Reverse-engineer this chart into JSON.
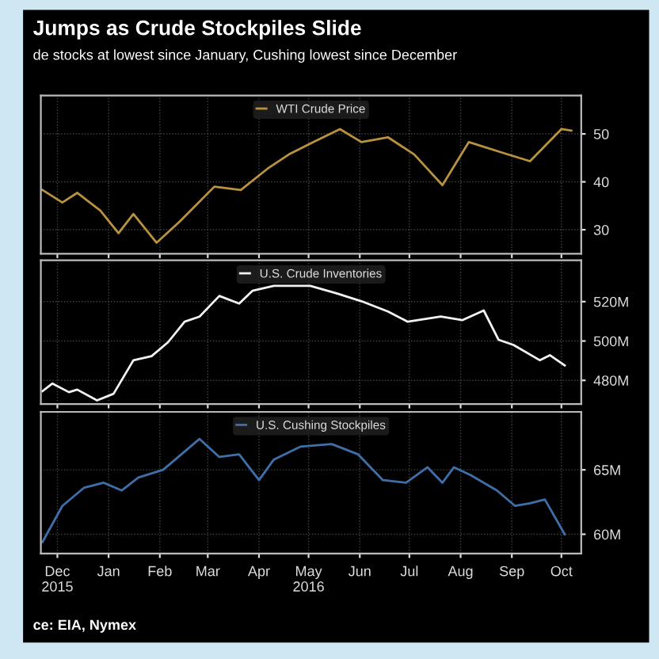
{
  "chart_data": [
    {
      "type": "line",
      "title": "Jumps as Crude Stockpiles Slide",
      "subtitle": "de stocks at lowest since January, Cushing lowest since December",
      "legend": "top",
      "grid": true,
      "tick_labels": "y",
      "xlim": [
        "2015-12-05",
        "2016-10-27"
      ],
      "ylim": [
        25,
        58
      ],
      "yticks": [
        30,
        40,
        50
      ],
      "series": [
        {
          "name": "WTI Crude Price",
          "color": "#b8923f",
          "x": [
            "2015-12-06",
            "2015-12-18",
            "2015-12-27",
            "2016-01-10",
            "2016-01-21",
            "2016-01-30",
            "2016-02-13",
            "2016-02-27",
            "2016-03-19",
            "2016-04-04",
            "2016-04-20",
            "2016-05-03",
            "2016-05-18",
            "2016-06-03",
            "2016-06-16",
            "2016-07-02",
            "2016-07-18",
            "2016-08-04",
            "2016-08-20",
            "2016-09-10",
            "2016-09-26",
            "2016-10-15",
            "2016-10-21"
          ],
          "values": [
            38.3,
            35.7,
            37.7,
            34,
            29.3,
            33.3,
            27.3,
            31.7,
            39,
            38.3,
            42.7,
            45.7,
            48.3,
            51,
            48.3,
            49.3,
            45.7,
            39.3,
            48.3,
            46,
            44.3,
            51,
            50.7
          ]
        }
      ]
    },
    {
      "type": "line",
      "legend": "top",
      "grid": true,
      "tick_labels": "y",
      "xlim": [
        "2015-12-05",
        "2016-10-27"
      ],
      "ylim": [
        468,
        541
      ],
      "yticks": [
        {
          "value": 480,
          "label": "480M"
        },
        {
          "value": 500,
          "label": "500M"
        },
        {
          "value": 520,
          "label": "520M"
        }
      ],
      "series": [
        {
          "name": "U.S. Crude Inventories",
          "color": "#f2f2f2",
          "x": [
            "2015-12-06",
            "2015-12-12",
            "2015-12-22",
            "2015-12-27",
            "2016-01-08",
            "2016-01-18",
            "2016-01-30",
            "2016-02-10",
            "2016-02-20",
            "2016-03-01",
            "2016-03-10",
            "2016-03-22",
            "2016-04-03",
            "2016-04-11",
            "2016-04-24",
            "2016-05-16",
            "2016-06-01",
            "2016-06-16",
            "2016-07-02",
            "2016-07-14",
            "2016-08-03",
            "2016-08-16",
            "2016-08-29",
            "2016-09-07",
            "2016-09-16",
            "2016-10-02",
            "2016-10-08",
            "2016-10-17"
          ],
          "values": [
            474.5,
            478.4,
            474,
            475.3,
            469.8,
            473.2,
            490.2,
            492.3,
            499.4,
            509.8,
            512.4,
            522.9,
            519,
            525.5,
            528,
            528,
            524.2,
            520.2,
            515,
            509.8,
            512.4,
            510.6,
            515.5,
            500.6,
            498,
            490.2,
            492.8,
            487.6
          ]
        }
      ]
    },
    {
      "type": "line",
      "legend": "top",
      "grid": true,
      "annotations": [
        "ce: EIA, Nymex"
      ],
      "xlim": [
        "2015-12-05",
        "2016-10-27"
      ],
      "xticks": [
        {
          "value": "2015-12-15",
          "label": "Dec\n2015"
        },
        {
          "value": "2016-01-15",
          "label": "Jan"
        },
        {
          "value": "2016-02-15",
          "label": "Feb"
        },
        {
          "value": "2016-03-15",
          "label": "Mar"
        },
        {
          "value": "2016-04-15",
          "label": "Apr"
        },
        {
          "value": "2016-05-15",
          "label": "May\n2016"
        },
        {
          "value": "2016-06-15",
          "label": "Jun"
        },
        {
          "value": "2016-07-15",
          "label": "Jul"
        },
        {
          "value": "2016-08-15",
          "label": "Aug"
        },
        {
          "value": "2016-09-15",
          "label": "Sep"
        },
        {
          "value": "2016-10-15",
          "label": "Oct"
        }
      ],
      "ylim": [
        58.5,
        69.5
      ],
      "yticks": [
        {
          "value": 60,
          "label": "60M"
        },
        {
          "value": 65,
          "label": "65M"
        }
      ],
      "series": [
        {
          "name": "U.S. Cushing Stockpiles",
          "color": "#3f6fa8",
          "x": [
            "2015-12-06",
            "2015-12-18",
            "2015-12-31",
            "2016-01-12",
            "2016-01-23",
            "2016-02-02",
            "2016-02-17",
            "2016-02-28",
            "2016-03-10",
            "2016-03-22",
            "2016-04-03",
            "2016-04-15",
            "2016-04-24",
            "2016-05-10",
            "2016-05-29",
            "2016-06-14",
            "2016-06-29",
            "2016-07-13",
            "2016-07-26",
            "2016-08-04",
            "2016-08-11",
            "2016-08-21",
            "2016-09-06",
            "2016-09-17",
            "2016-09-26",
            "2016-10-05",
            "2016-10-17"
          ],
          "values": [
            59.4,
            62.2,
            63.6,
            64,
            63.4,
            64.4,
            65,
            66.2,
            67.4,
            66,
            66.2,
            64.2,
            65.8,
            66.8,
            67,
            66.2,
            64.2,
            64,
            65.2,
            64,
            65.2,
            64.6,
            63.4,
            62.2,
            62.4,
            62.7,
            60
          ]
        }
      ]
    }
  ]
}
